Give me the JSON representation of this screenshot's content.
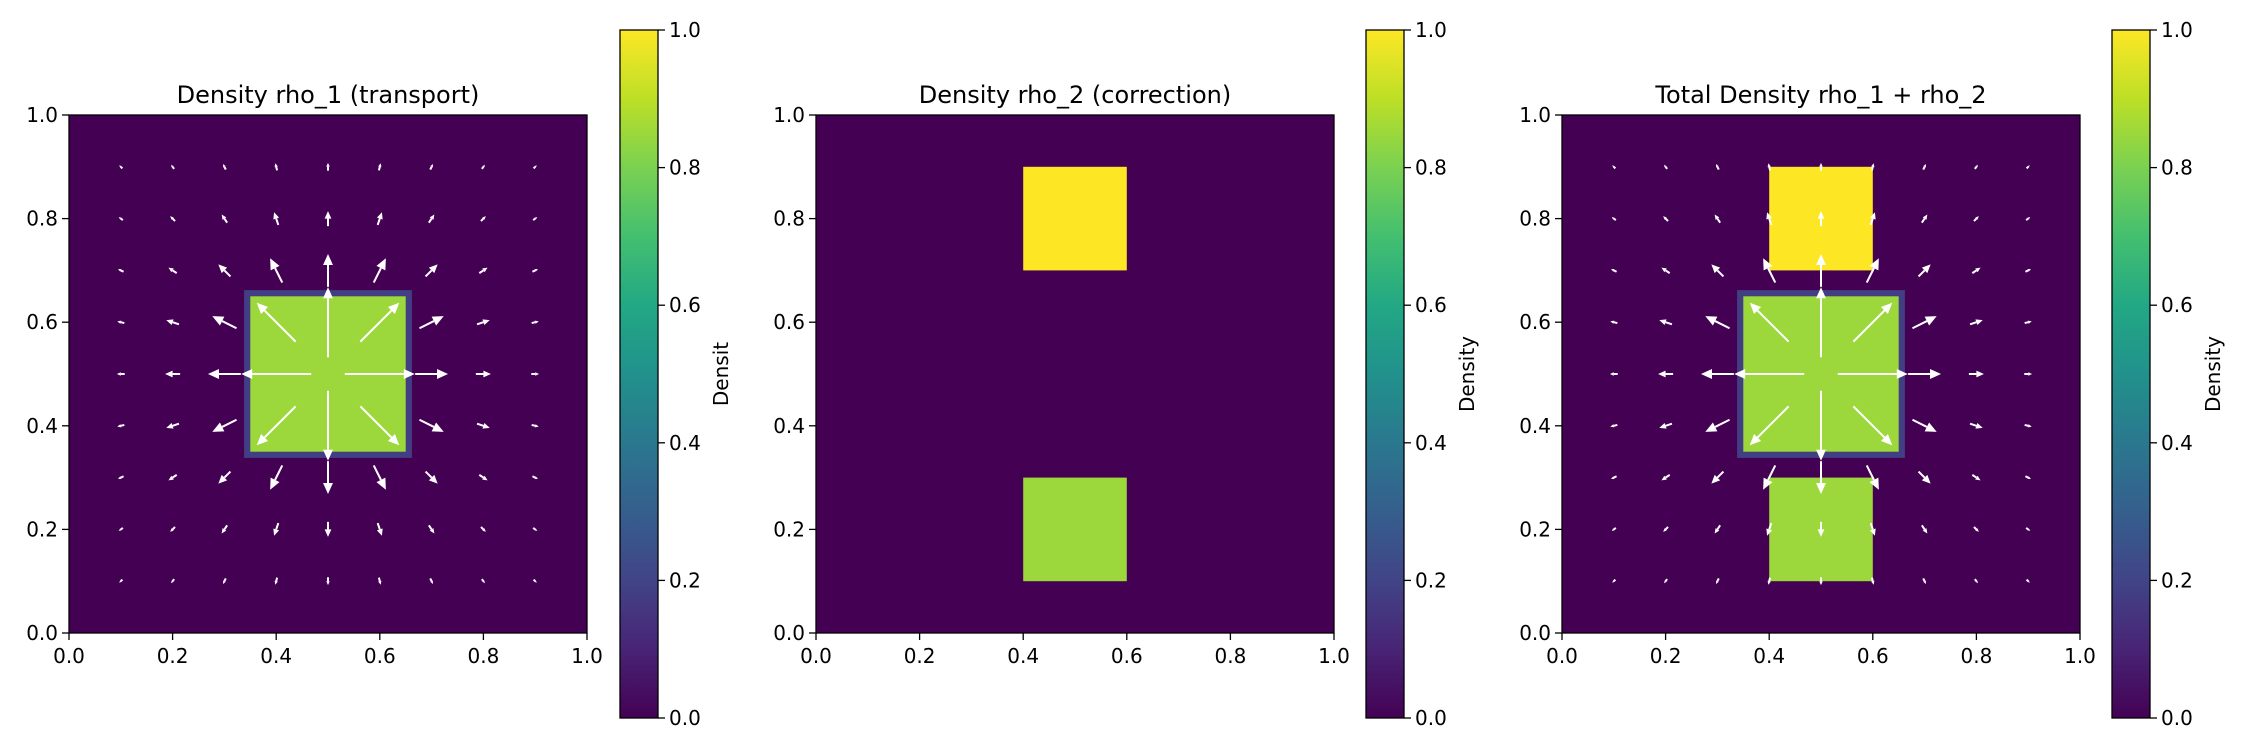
{
  "chart_data": [
    {
      "type": "heatmap",
      "title": "Density rho_1 (transport)",
      "xlim": [
        0,
        1
      ],
      "ylim": [
        0,
        1
      ],
      "xticks": [
        "0.0",
        "0.2",
        "0.4",
        "0.6",
        "0.8",
        "1.0"
      ],
      "yticks": [
        "0.0",
        "0.2",
        "0.4",
        "0.6",
        "0.8",
        "1.0"
      ],
      "colormap": "viridis",
      "background_value": 0.0,
      "regions": [
        {
          "x": [
            0.35,
            0.65
          ],
          "y": [
            0.35,
            0.65
          ],
          "value": 0.85,
          "edge_value": 0.18
        }
      ],
      "quiver": {
        "grid": [
          0.1,
          0.2,
          0.3,
          0.4,
          0.5,
          0.6,
          0.7,
          0.8,
          0.9
        ],
        "center": [
          0.5,
          0.5
        ],
        "pattern": "radial outward",
        "color": "#ffffff"
      },
      "colorbar": {
        "label": "Densit",
        "ticks": [
          "0.0",
          "0.2",
          "0.4",
          "0.6",
          "0.8",
          "1.0"
        ],
        "range": [
          0,
          1
        ]
      }
    },
    {
      "type": "heatmap",
      "title": "Density rho_2 (correction)",
      "xlim": [
        0,
        1
      ],
      "ylim": [
        0,
        1
      ],
      "xticks": [
        "0.0",
        "0.2",
        "0.4",
        "0.6",
        "0.8",
        "1.0"
      ],
      "yticks": [
        "0.0",
        "0.2",
        "0.4",
        "0.6",
        "0.8",
        "1.0"
      ],
      "colormap": "viridis",
      "background_value": 0.0,
      "regions": [
        {
          "x": [
            0.4,
            0.6
          ],
          "y": [
            0.7,
            0.9
          ],
          "value": 1.0
        },
        {
          "x": [
            0.4,
            0.6
          ],
          "y": [
            0.1,
            0.3
          ],
          "value": 0.85
        }
      ],
      "colorbar": {
        "label": "Density",
        "ticks": [
          "0.0",
          "0.2",
          "0.4",
          "0.6",
          "0.8",
          "1.0"
        ],
        "range": [
          0,
          1
        ]
      }
    },
    {
      "type": "heatmap",
      "title": "Total Density rho_1 + rho_2",
      "xlim": [
        0,
        1
      ],
      "ylim": [
        0,
        1
      ],
      "xticks": [
        "0.0",
        "0.2",
        "0.4",
        "0.6",
        "0.8",
        "1.0"
      ],
      "yticks": [
        "0.0",
        "0.2",
        "0.4",
        "0.6",
        "0.8",
        "1.0"
      ],
      "colormap": "viridis",
      "background_value": 0.0,
      "regions": [
        {
          "x": [
            0.35,
            0.65
          ],
          "y": [
            0.35,
            0.65
          ],
          "value": 0.85,
          "edge_value": 0.18
        },
        {
          "x": [
            0.4,
            0.6
          ],
          "y": [
            0.7,
            0.9
          ],
          "value": 1.0
        },
        {
          "x": [
            0.4,
            0.6
          ],
          "y": [
            0.1,
            0.3
          ],
          "value": 0.85
        }
      ],
      "quiver": {
        "grid": [
          0.1,
          0.2,
          0.3,
          0.4,
          0.5,
          0.6,
          0.7,
          0.8,
          0.9
        ],
        "center": [
          0.5,
          0.5
        ],
        "pattern": "radial outward",
        "color": "#ffffff"
      },
      "colorbar": {
        "label": "Density",
        "ticks": [
          "0.0",
          "0.2",
          "0.4",
          "0.6",
          "0.8",
          "1.0"
        ],
        "range": [
          0,
          1
        ]
      }
    }
  ]
}
